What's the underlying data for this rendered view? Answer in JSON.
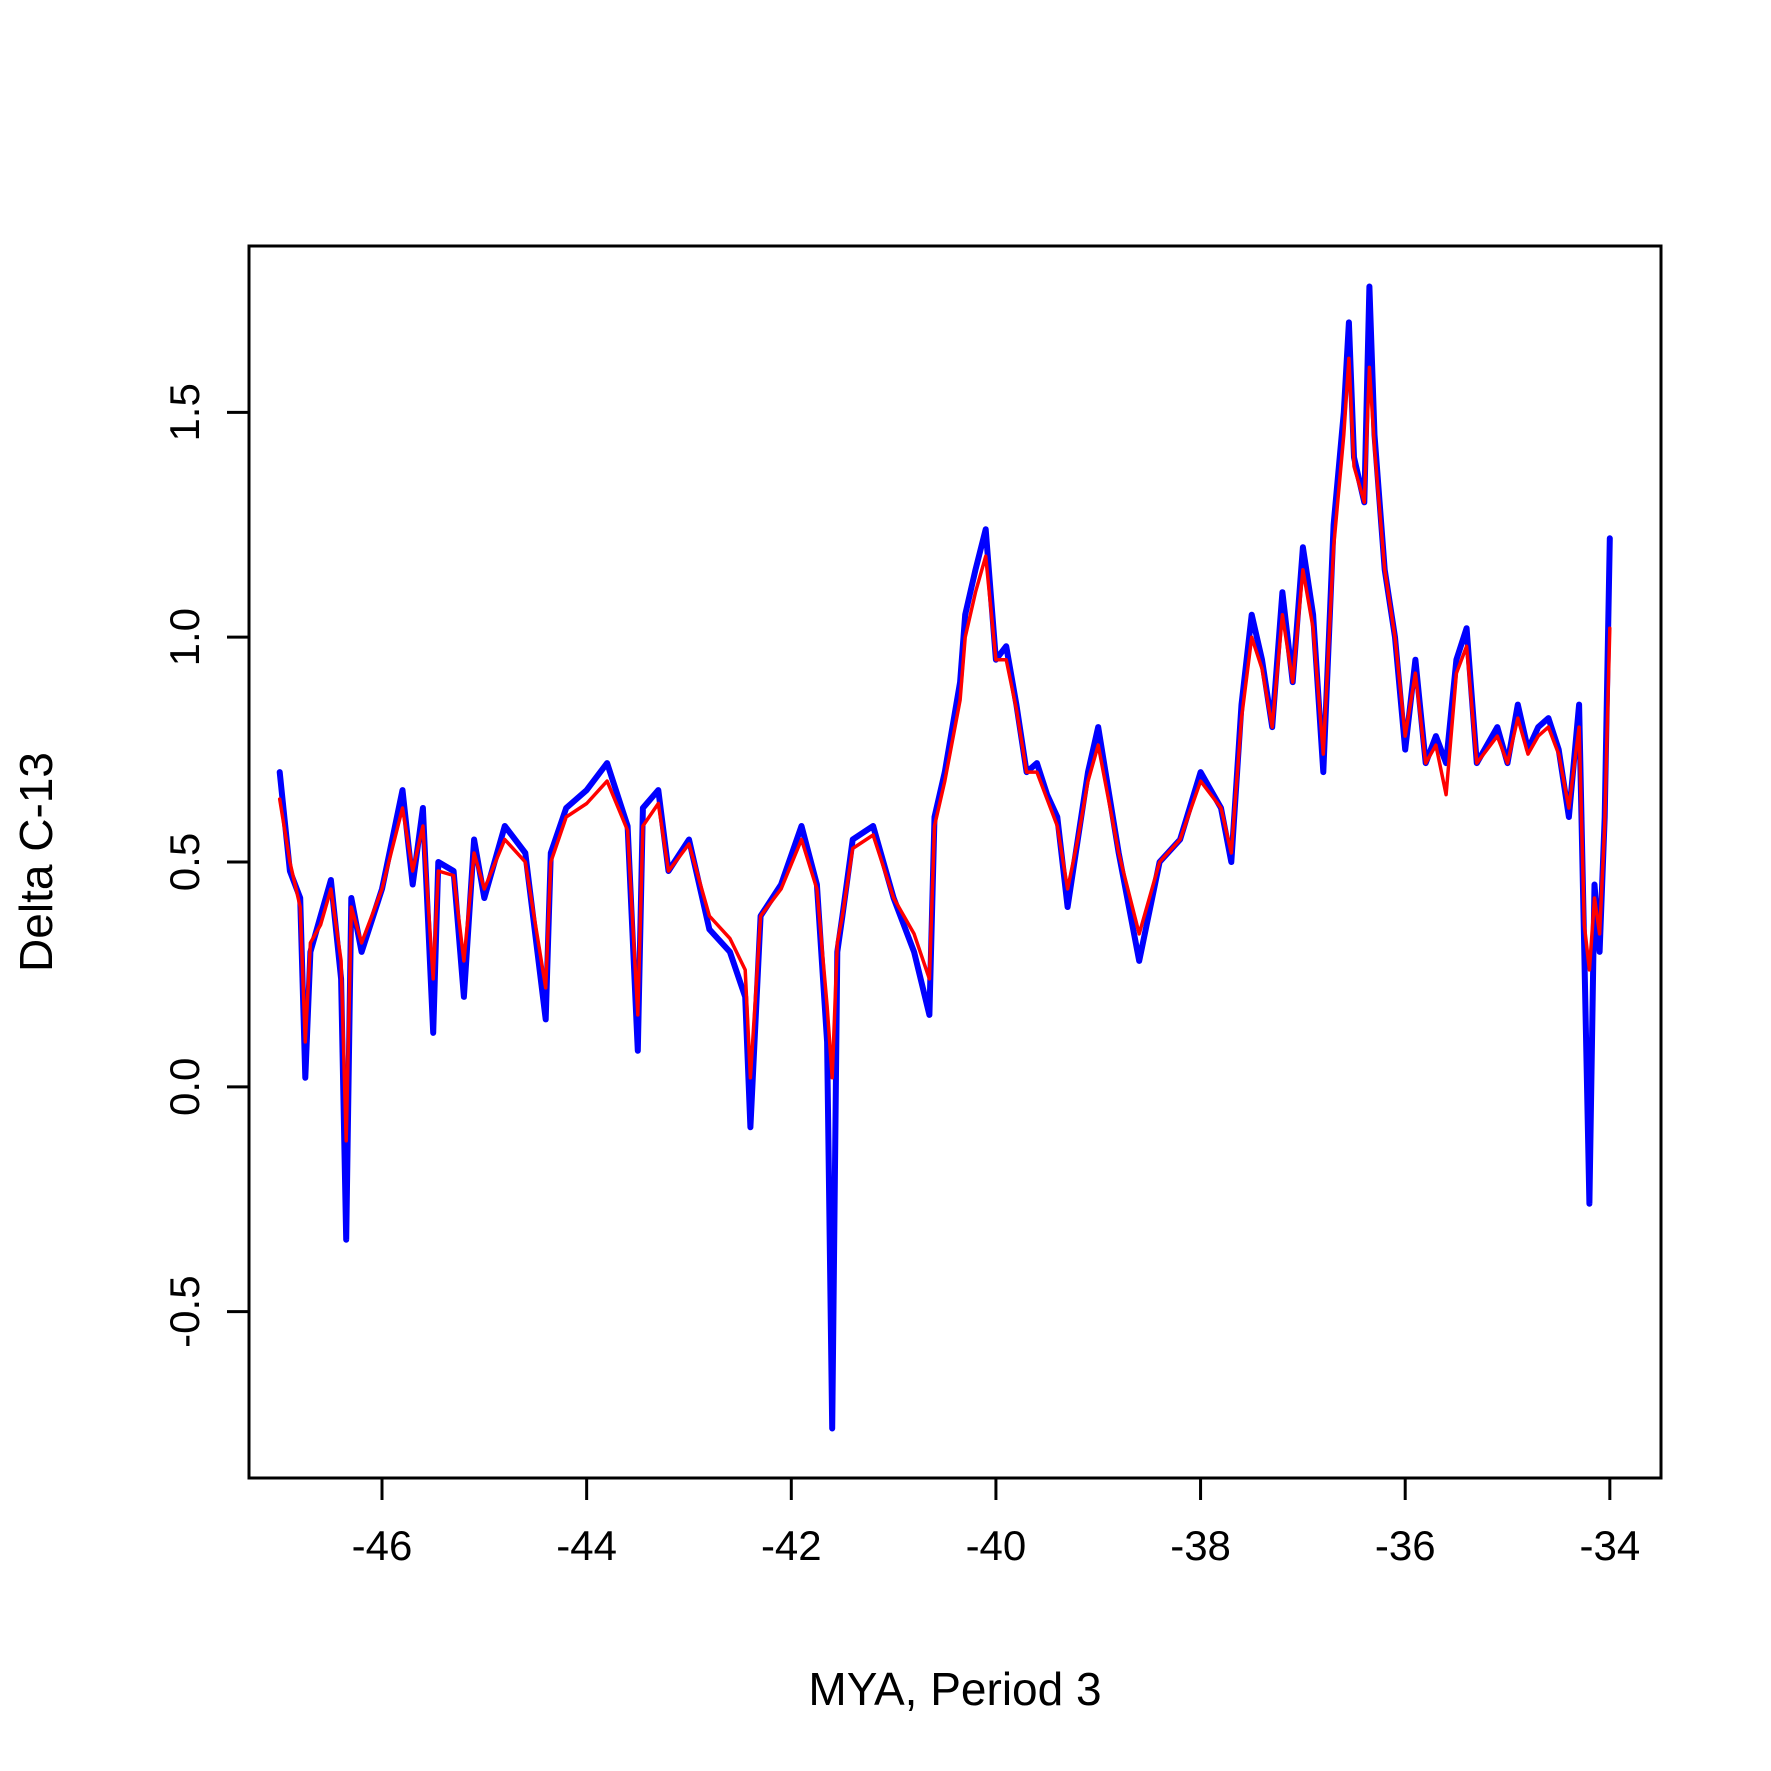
{
  "chart_data": {
    "type": "line",
    "title": "",
    "xlabel": "MYA, Period 3",
    "ylabel": "Delta C-13",
    "xlim": [
      -47.3,
      -33.5
    ],
    "ylim": [
      -0.87,
      1.87
    ],
    "x_ticks": [
      -46,
      -44,
      -42,
      -40,
      -38,
      -36,
      -34
    ],
    "x_tick_labels": [
      "-46",
      "-44",
      "-42",
      "-40",
      "-38",
      "-36",
      "-34"
    ],
    "y_ticks": [
      -0.5,
      0.0,
      0.5,
      1.0,
      1.5
    ],
    "y_tick_labels": [
      "-0.5",
      "0.0",
      "0.5",
      "1.0",
      "1.5"
    ],
    "grid": false,
    "legend": "none",
    "series": [
      {
        "color": "#0000ff",
        "x": [
          -47.0,
          -46.9,
          -46.8,
          -46.75,
          -46.7,
          -46.6,
          -46.5,
          -46.4,
          -46.35,
          -46.3,
          -46.2,
          -46.0,
          -45.8,
          -45.7,
          -45.6,
          -45.5,
          -45.45,
          -45.3,
          -45.2,
          -45.1,
          -45.0,
          -44.8,
          -44.6,
          -44.4,
          -44.35,
          -44.2,
          -44.0,
          -43.8,
          -43.6,
          -43.5,
          -43.45,
          -43.3,
          -43.2,
          -43.0,
          -42.8,
          -42.6,
          -42.45,
          -42.4,
          -42.3,
          -42.1,
          -41.9,
          -41.75,
          -41.65,
          -41.6,
          -41.55,
          -41.5,
          -41.4,
          -41.2,
          -41.0,
          -40.8,
          -40.65,
          -40.6,
          -40.5,
          -40.35,
          -40.3,
          -40.2,
          -40.1,
          -40.0,
          -39.9,
          -39.8,
          -39.7,
          -39.6,
          -39.5,
          -39.4,
          -39.3,
          -39.2,
          -39.1,
          -39.0,
          -38.8,
          -38.6,
          -38.4,
          -38.2,
          -38.0,
          -37.8,
          -37.7,
          -37.6,
          -37.5,
          -37.4,
          -37.3,
          -37.2,
          -37.1,
          -37.0,
          -36.9,
          -36.8,
          -36.7,
          -36.6,
          -36.55,
          -36.5,
          -36.4,
          -36.35,
          -36.3,
          -36.2,
          -36.1,
          -36.0,
          -35.9,
          -35.8,
          -35.7,
          -35.6,
          -35.5,
          -35.4,
          -35.3,
          -35.1,
          -35.0,
          -34.9,
          -34.8,
          -34.7,
          -34.6,
          -34.5,
          -34.4,
          -34.3,
          -34.25,
          -34.2,
          -34.15,
          -34.1,
          -34.05,
          -34.0
        ],
        "y": [
          0.7,
          0.48,
          0.42,
          0.02,
          0.3,
          0.38,
          0.46,
          0.24,
          -0.34,
          0.42,
          0.3,
          0.44,
          0.66,
          0.45,
          0.62,
          0.12,
          0.5,
          0.48,
          0.2,
          0.55,
          0.42,
          0.58,
          0.52,
          0.15,
          0.52,
          0.62,
          0.66,
          0.72,
          0.58,
          0.08,
          0.62,
          0.66,
          0.48,
          0.55,
          0.35,
          0.3,
          0.2,
          -0.09,
          0.38,
          0.45,
          0.58,
          0.45,
          0.1,
          -0.76,
          0.3,
          0.38,
          0.55,
          0.58,
          0.42,
          0.3,
          0.16,
          0.6,
          0.7,
          0.9,
          1.05,
          1.15,
          1.24,
          0.95,
          0.98,
          0.85,
          0.7,
          0.72,
          0.65,
          0.6,
          0.4,
          0.55,
          0.7,
          0.8,
          0.52,
          0.28,
          0.5,
          0.55,
          0.7,
          0.62,
          0.5,
          0.85,
          1.05,
          0.95,
          0.8,
          1.1,
          0.9,
          1.2,
          1.05,
          0.7,
          1.25,
          1.5,
          1.7,
          1.4,
          1.3,
          1.78,
          1.45,
          1.15,
          1.0,
          0.75,
          0.95,
          0.72,
          0.78,
          0.72,
          0.95,
          1.02,
          0.72,
          0.8,
          0.72,
          0.85,
          0.75,
          0.8,
          0.82,
          0.75,
          0.6,
          0.85,
          0.3,
          -0.26,
          0.45,
          0.3,
          0.6,
          1.22
        ]
      },
      {
        "color": "#ff0000",
        "x": [
          -47.0,
          -46.9,
          -46.8,
          -46.75,
          -46.7,
          -46.6,
          -46.5,
          -46.4,
          -46.35,
          -46.3,
          -46.2,
          -46.0,
          -45.8,
          -45.7,
          -45.6,
          -45.5,
          -45.45,
          -45.3,
          -45.2,
          -45.1,
          -45.0,
          -44.8,
          -44.6,
          -44.4,
          -44.35,
          -44.2,
          -44.0,
          -43.8,
          -43.6,
          -43.5,
          -43.45,
          -43.3,
          -43.2,
          -43.0,
          -42.8,
          -42.6,
          -42.45,
          -42.4,
          -42.3,
          -42.1,
          -41.9,
          -41.75,
          -41.65,
          -41.6,
          -41.55,
          -41.5,
          -41.4,
          -41.2,
          -41.0,
          -40.8,
          -40.65,
          -40.6,
          -40.5,
          -40.35,
          -40.3,
          -40.2,
          -40.1,
          -40.0,
          -39.9,
          -39.8,
          -39.7,
          -39.6,
          -39.5,
          -39.4,
          -39.3,
          -39.2,
          -39.1,
          -39.0,
          -38.8,
          -38.6,
          -38.4,
          -38.2,
          -38.0,
          -37.8,
          -37.7,
          -37.6,
          -37.5,
          -37.4,
          -37.3,
          -37.2,
          -37.1,
          -37.0,
          -36.9,
          -36.8,
          -36.7,
          -36.6,
          -36.55,
          -36.5,
          -36.4,
          -36.35,
          -36.3,
          -36.2,
          -36.1,
          -36.0,
          -35.9,
          -35.8,
          -35.7,
          -35.6,
          -35.5,
          -35.4,
          -35.3,
          -35.1,
          -35.0,
          -34.9,
          -34.8,
          -34.7,
          -34.6,
          -34.5,
          -34.4,
          -34.3,
          -34.25,
          -34.2,
          -34.15,
          -34.1,
          -34.05,
          -34.0
        ],
        "y": [
          0.64,
          0.5,
          0.4,
          0.1,
          0.32,
          0.36,
          0.44,
          0.28,
          -0.12,
          0.4,
          0.32,
          0.44,
          0.62,
          0.48,
          0.58,
          0.24,
          0.48,
          0.47,
          0.28,
          0.52,
          0.44,
          0.55,
          0.5,
          0.22,
          0.5,
          0.6,
          0.63,
          0.68,
          0.57,
          0.16,
          0.58,
          0.63,
          0.48,
          0.54,
          0.38,
          0.33,
          0.26,
          0.02,
          0.38,
          0.44,
          0.55,
          0.44,
          0.18,
          0.02,
          0.32,
          0.38,
          0.53,
          0.56,
          0.42,
          0.34,
          0.24,
          0.58,
          0.68,
          0.86,
          1.0,
          1.1,
          1.18,
          0.95,
          0.95,
          0.84,
          0.7,
          0.7,
          0.64,
          0.58,
          0.44,
          0.55,
          0.68,
          0.76,
          0.52,
          0.34,
          0.5,
          0.55,
          0.68,
          0.62,
          0.52,
          0.82,
          1.0,
          0.93,
          0.8,
          1.05,
          0.9,
          1.15,
          1.02,
          0.74,
          1.2,
          1.45,
          1.62,
          1.38,
          1.3,
          1.6,
          1.42,
          1.15,
          1.0,
          0.78,
          0.92,
          0.72,
          0.76,
          0.65,
          0.92,
          0.98,
          0.72,
          0.78,
          0.72,
          0.82,
          0.74,
          0.78,
          0.8,
          0.74,
          0.62,
          0.8,
          0.36,
          0.26,
          0.42,
          0.34,
          0.58,
          1.02
        ]
      }
    ]
  }
}
